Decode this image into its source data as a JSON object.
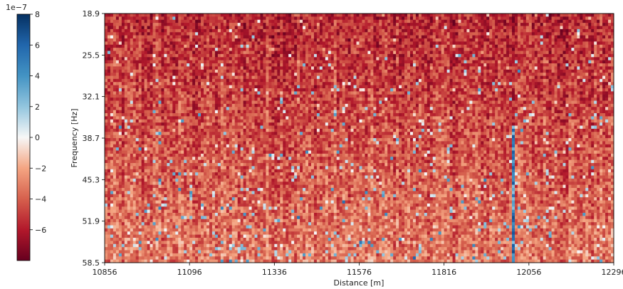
{
  "chart_data": {
    "type": "heatmap",
    "title": "",
    "xlabel": "Distance [m]",
    "ylabel": "Frequency [Hz]",
    "x_ticks": [
      10856,
      11096,
      11336,
      11576,
      11816,
      12056,
      12296
    ],
    "y_ticks": [
      18.9,
      25.5,
      32.1,
      38.7,
      45.3,
      51.9,
      58.5
    ],
    "xlim": [
      10856,
      12296
    ],
    "ylim": [
      18.9,
      58.5
    ],
    "y_inverted": true,
    "colormap": "RdBu",
    "colorbar": {
      "multiplier_label": "1e−7",
      "ticks": [
        8,
        6,
        4,
        2,
        0,
        -2,
        -4,
        -6
      ],
      "tick_labels": [
        "8",
        "6",
        "4",
        "2",
        "0",
        "−2",
        "−4",
        "−6"
      ],
      "range": [
        -8,
        8
      ]
    },
    "grid": false,
    "grid_dims": {
      "cols": 180,
      "rows": 80
    },
    "value_note": "values mostly between -8e-7 and -2e-7 (red), with scattered near-zero and positive cells concentrated at higher frequencies; a strong positive column near 12010 m"
  },
  "colors": {
    "dark_red": "#67001f",
    "red": "#d6604d",
    "light": "#f7f7f7",
    "blue": "#4393c3",
    "dark_blue": "#053061"
  }
}
